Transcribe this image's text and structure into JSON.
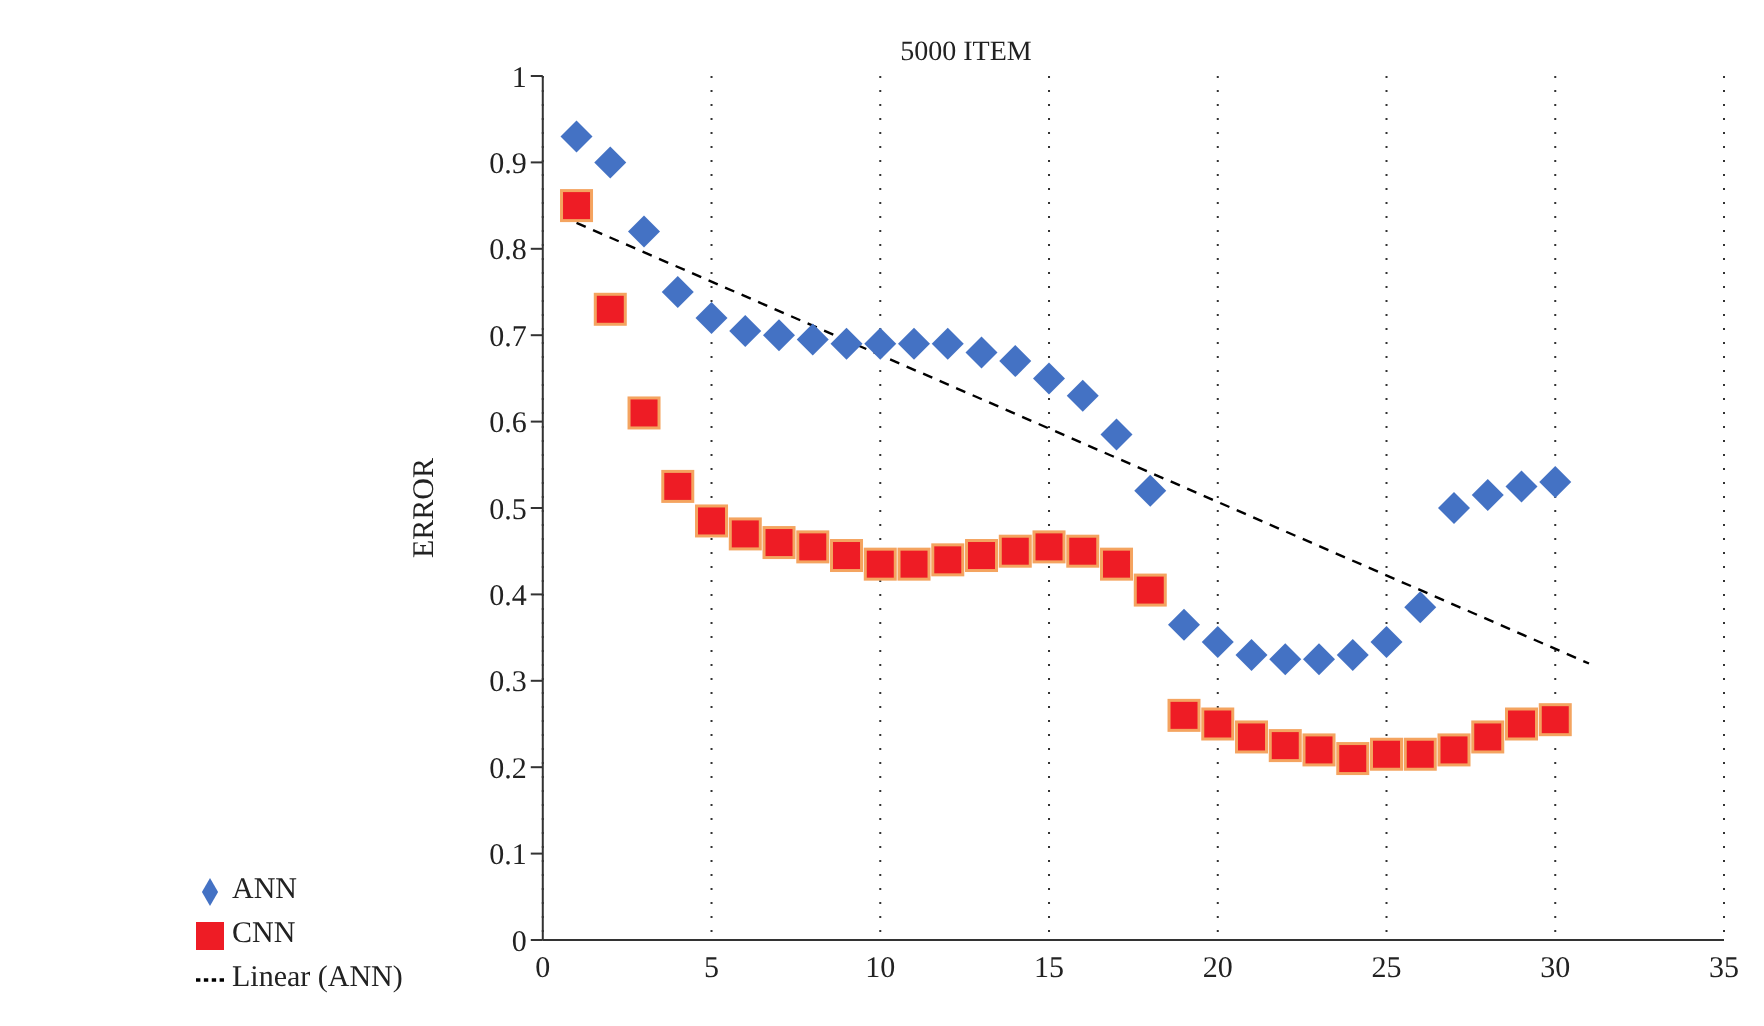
{
  "chart_data": {
    "type": "scatter",
    "title": "5000 ITEM",
    "ylabel": "ERROR",
    "x": [
      1,
      2,
      3,
      4,
      5,
      6,
      7,
      8,
      9,
      10,
      11,
      12,
      13,
      14,
      15,
      16,
      17,
      18,
      19,
      20,
      21,
      22,
      23,
      24,
      25,
      26,
      27,
      28,
      29,
      30
    ],
    "series": [
      {
        "name": "ANN",
        "color": "#4472c4",
        "marker": "diamond",
        "values": [
          0.93,
          0.9,
          0.82,
          0.75,
          0.72,
          0.705,
          0.7,
          0.695,
          0.69,
          0.69,
          0.69,
          0.69,
          0.68,
          0.67,
          0.65,
          0.63,
          0.585,
          0.52,
          0.365,
          0.345,
          0.33,
          0.325,
          0.325,
          0.33,
          0.345,
          0.385,
          0.5,
          0.515,
          0.525,
          0.53
        ]
      },
      {
        "name": "CNN",
        "color": "#ee1c25",
        "marker": "square",
        "values": [
          0.85,
          0.73,
          0.61,
          0.525,
          0.485,
          0.47,
          0.46,
          0.455,
          0.445,
          0.435,
          0.435,
          0.44,
          0.445,
          0.45,
          0.455,
          0.45,
          0.435,
          0.405,
          0.26,
          0.25,
          0.235,
          0.225,
          0.22,
          0.21,
          0.215,
          0.215,
          0.22,
          0.235,
          0.25,
          0.255
        ]
      },
      {
        "name": "Linear (ANN)",
        "type": "line",
        "color": "#000000",
        "line_style": "dashed",
        "marker": "none",
        "x": [
          1,
          31
        ],
        "values": [
          0.83,
          0.32
        ]
      }
    ],
    "xlim": [
      0,
      35
    ],
    "xticks": [
      0,
      5,
      10,
      15,
      20,
      25,
      30,
      35
    ],
    "ylim": [
      0,
      1
    ],
    "yticks": [
      0,
      0.1,
      0.2,
      0.3,
      0.4,
      0.5,
      0.6,
      0.7,
      0.8,
      0.9,
      1
    ],
    "grid": "x",
    "legend": "bottom left"
  }
}
